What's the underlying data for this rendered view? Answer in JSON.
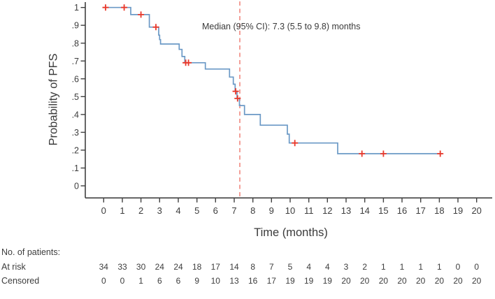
{
  "colors": {
    "curve": "#6b99c6",
    "censor": "#e9392b",
    "median_line": "#f2968e",
    "axis": "#3f3f3f",
    "text": "#3a3a3a"
  },
  "chart_data": {
    "type": "line",
    "subtype": "kaplan-meier-step-curve",
    "title": "",
    "xlabel": "Time (months)",
    "ylabel": "Probability of PFS",
    "annotation": "Median (95% CI): 7.3 (5.5 to 9.8) months",
    "median_months": 7.3,
    "median_ci_months": [
      5.5,
      9.8
    ],
    "xlim": [
      0,
      20
    ],
    "ylim": [
      0,
      1
    ],
    "grid": false,
    "x_tick_labels": [
      "0",
      "1",
      "2",
      "3",
      "4",
      "5",
      "6",
      "7",
      "8",
      "9",
      "10",
      "11",
      "12",
      "13",
      "14",
      "15",
      "16",
      "17",
      "18",
      "19",
      "20"
    ],
    "y_tick_labels": [
      "1",
      ".9",
      ".8",
      ".7",
      ".6",
      ".5",
      ".4",
      ".3",
      ".2",
      ".1",
      "0"
    ],
    "y_tick_values": [
      1,
      0.9,
      0.8,
      0.7,
      0.6,
      0.5,
      0.4,
      0.3,
      0.2,
      0.1,
      0
    ],
    "km_steps": [
      [
        0,
        1.0
      ],
      [
        1.45,
        0.96
      ],
      [
        2.45,
        0.89
      ],
      [
        2.95,
        0.845
      ],
      [
        3.0,
        0.82
      ],
      [
        3.05,
        0.795
      ],
      [
        4.05,
        0.765
      ],
      [
        4.2,
        0.725
      ],
      [
        4.35,
        0.69
      ],
      [
        5.45,
        0.655
      ],
      [
        6.75,
        0.61
      ],
      [
        6.95,
        0.57
      ],
      [
        7.05,
        0.53
      ],
      [
        7.15,
        0.49
      ],
      [
        7.28,
        0.45
      ],
      [
        7.55,
        0.4
      ],
      [
        8.4,
        0.34
      ],
      [
        9.85,
        0.29
      ],
      [
        9.95,
        0.24
      ],
      [
        12.55,
        0.18
      ]
    ],
    "curve_end_month": 18.15,
    "censor_marks": [
      [
        0.1,
        1.0
      ],
      [
        1.1,
        1.0
      ],
      [
        2.0,
        0.96
      ],
      [
        2.8,
        0.89
      ],
      [
        4.4,
        0.69
      ],
      [
        4.55,
        0.69
      ],
      [
        7.08,
        0.53
      ],
      [
        7.18,
        0.49
      ],
      [
        10.25,
        0.24
      ],
      [
        13.85,
        0.18
      ],
      [
        15.0,
        0.18
      ],
      [
        18.05,
        0.18
      ]
    ],
    "risk_table": {
      "header": "No. of patients:",
      "rows": [
        {
          "label": "At risk",
          "values": [
            34,
            33,
            30,
            24,
            24,
            18,
            17,
            14,
            8,
            7,
            5,
            4,
            4,
            3,
            2,
            1,
            1,
            1,
            1,
            0,
            0
          ]
        },
        {
          "label": "Censored",
          "values": [
            0,
            0,
            1,
            6,
            6,
            9,
            10,
            13,
            16,
            17,
            19,
            19,
            19,
            20,
            20,
            20,
            20,
            20,
            20,
            20,
            20
          ]
        }
      ]
    }
  }
}
